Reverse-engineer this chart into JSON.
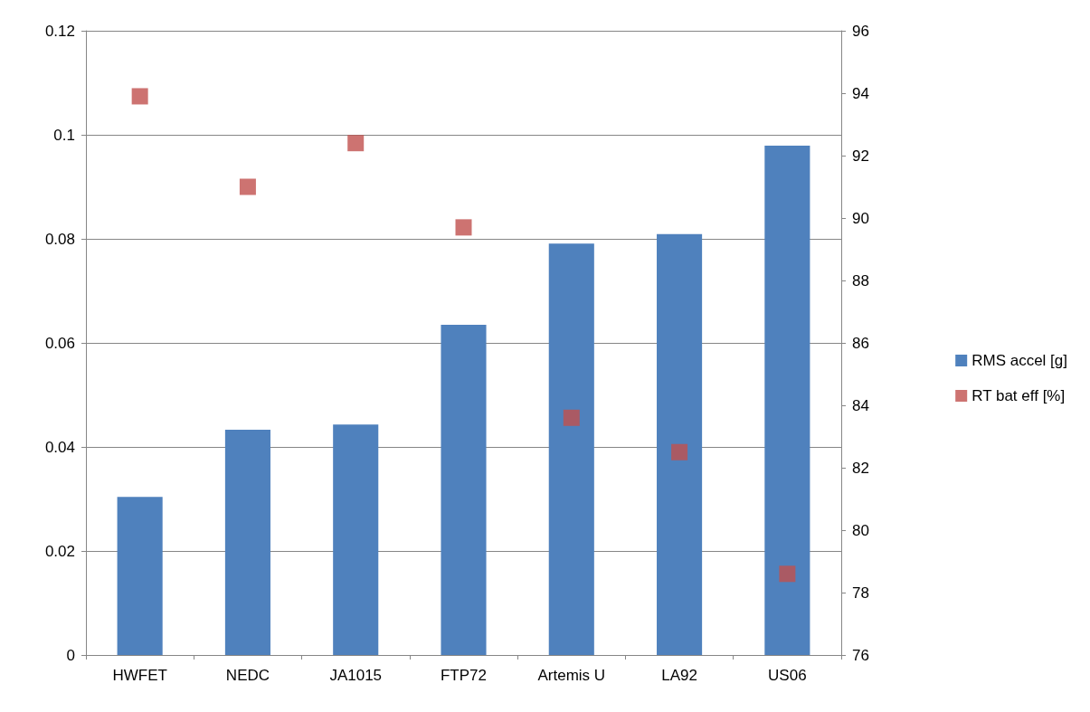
{
  "chart_data": {
    "type": "bar",
    "categories": [
      "HWFET",
      "NEDC",
      "JA1015",
      "FTP72",
      "Artemis U",
      "LA92",
      "US06"
    ],
    "series": [
      {
        "name": "RMS accel [g]",
        "color": "#4f81bd",
        "values": [
          0.0304,
          0.0433,
          0.0443,
          0.0635,
          0.0791,
          0.0809,
          0.0979
        ]
      },
      {
        "name": "RT bat eff [%]",
        "type": "scatter",
        "axis": "y2",
        "color": "#c0504d",
        "marker": "square",
        "values": [
          93.9,
          91.0,
          92.4,
          89.7,
          83.6,
          82.5,
          78.6
        ]
      }
    ],
    "ylim": [
      0,
      0.12
    ],
    "yticks": [
      0,
      0.02,
      0.04,
      0.06,
      0.08,
      0.1,
      0.12
    ],
    "y2lim": [
      76,
      96
    ],
    "y2ticks": [
      76,
      78,
      80,
      82,
      84,
      86,
      88,
      90,
      92,
      94,
      96
    ],
    "grid": "y",
    "legend": "right"
  }
}
